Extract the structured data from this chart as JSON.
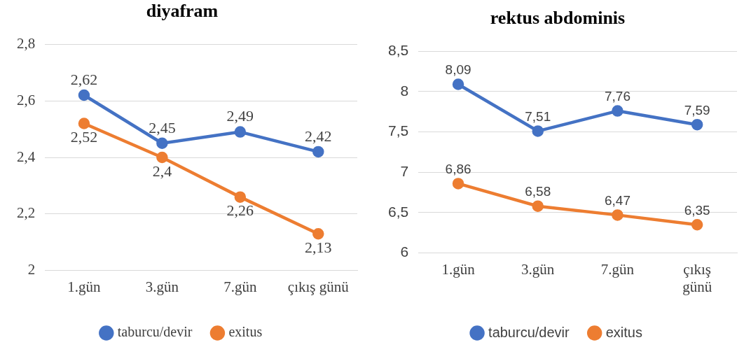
{
  "chart_data": [
    {
      "type": "line",
      "title": "diyafram",
      "categories": [
        "1.gün",
        "3.gün",
        "7.gün",
        "çıkış günü"
      ],
      "series": [
        {
          "name": "taburcu/devir",
          "color": "#4472c4",
          "values": [
            2.62,
            2.45,
            2.49,
            2.42
          ],
          "value_labels": [
            "2,62",
            "2,45",
            "2,49",
            "2,42"
          ]
        },
        {
          "name": "exitus",
          "color": "#ed7d31",
          "values": [
            2.52,
            2.4,
            2.26,
            2.13
          ],
          "value_labels": [
            "2,52",
            "2,4",
            "2,26",
            "2,13"
          ]
        }
      ],
      "ylim": [
        2,
        2.8
      ],
      "yticks": [
        {
          "value": 2,
          "label": "2"
        },
        {
          "value": 2.2,
          "label": "2,2"
        },
        {
          "value": 2.4,
          "label": "2,4"
        },
        {
          "value": 2.6,
          "label": "2,6"
        },
        {
          "value": 2.8,
          "label": "2,8"
        }
      ],
      "grid": "y",
      "legend": "bottom",
      "marker": "circle",
      "line_style": "solid"
    },
    {
      "type": "line",
      "title": "rektus abdominis",
      "categories": [
        "1.gün",
        "3.gün",
        "7.gün",
        "çıkış günü"
      ],
      "series": [
        {
          "name": "taburcu/devir",
          "color": "#4472c4",
          "values": [
            8.09,
            7.51,
            7.76,
            7.59
          ],
          "value_labels": [
            "8,09",
            "7,51",
            "7,76",
            "7,59"
          ]
        },
        {
          "name": "exitus",
          "color": "#ed7d31",
          "values": [
            6.86,
            6.58,
            6.47,
            6.35
          ],
          "value_labels": [
            "6,86",
            "6,58",
            "6,47",
            "6,35"
          ]
        }
      ],
      "ylim": [
        6,
        8.5
      ],
      "yticks": [
        {
          "value": 6,
          "label": "6"
        },
        {
          "value": 6.5,
          "label": "6,5"
        },
        {
          "value": 7,
          "label": "7"
        },
        {
          "value": 7.5,
          "label": "7,5"
        },
        {
          "value": 8,
          "label": "8"
        },
        {
          "value": 8.5,
          "label": "8,5"
        }
      ],
      "grid": "y",
      "legend": "bottom",
      "marker": "circle",
      "line_style": "solid"
    }
  ]
}
